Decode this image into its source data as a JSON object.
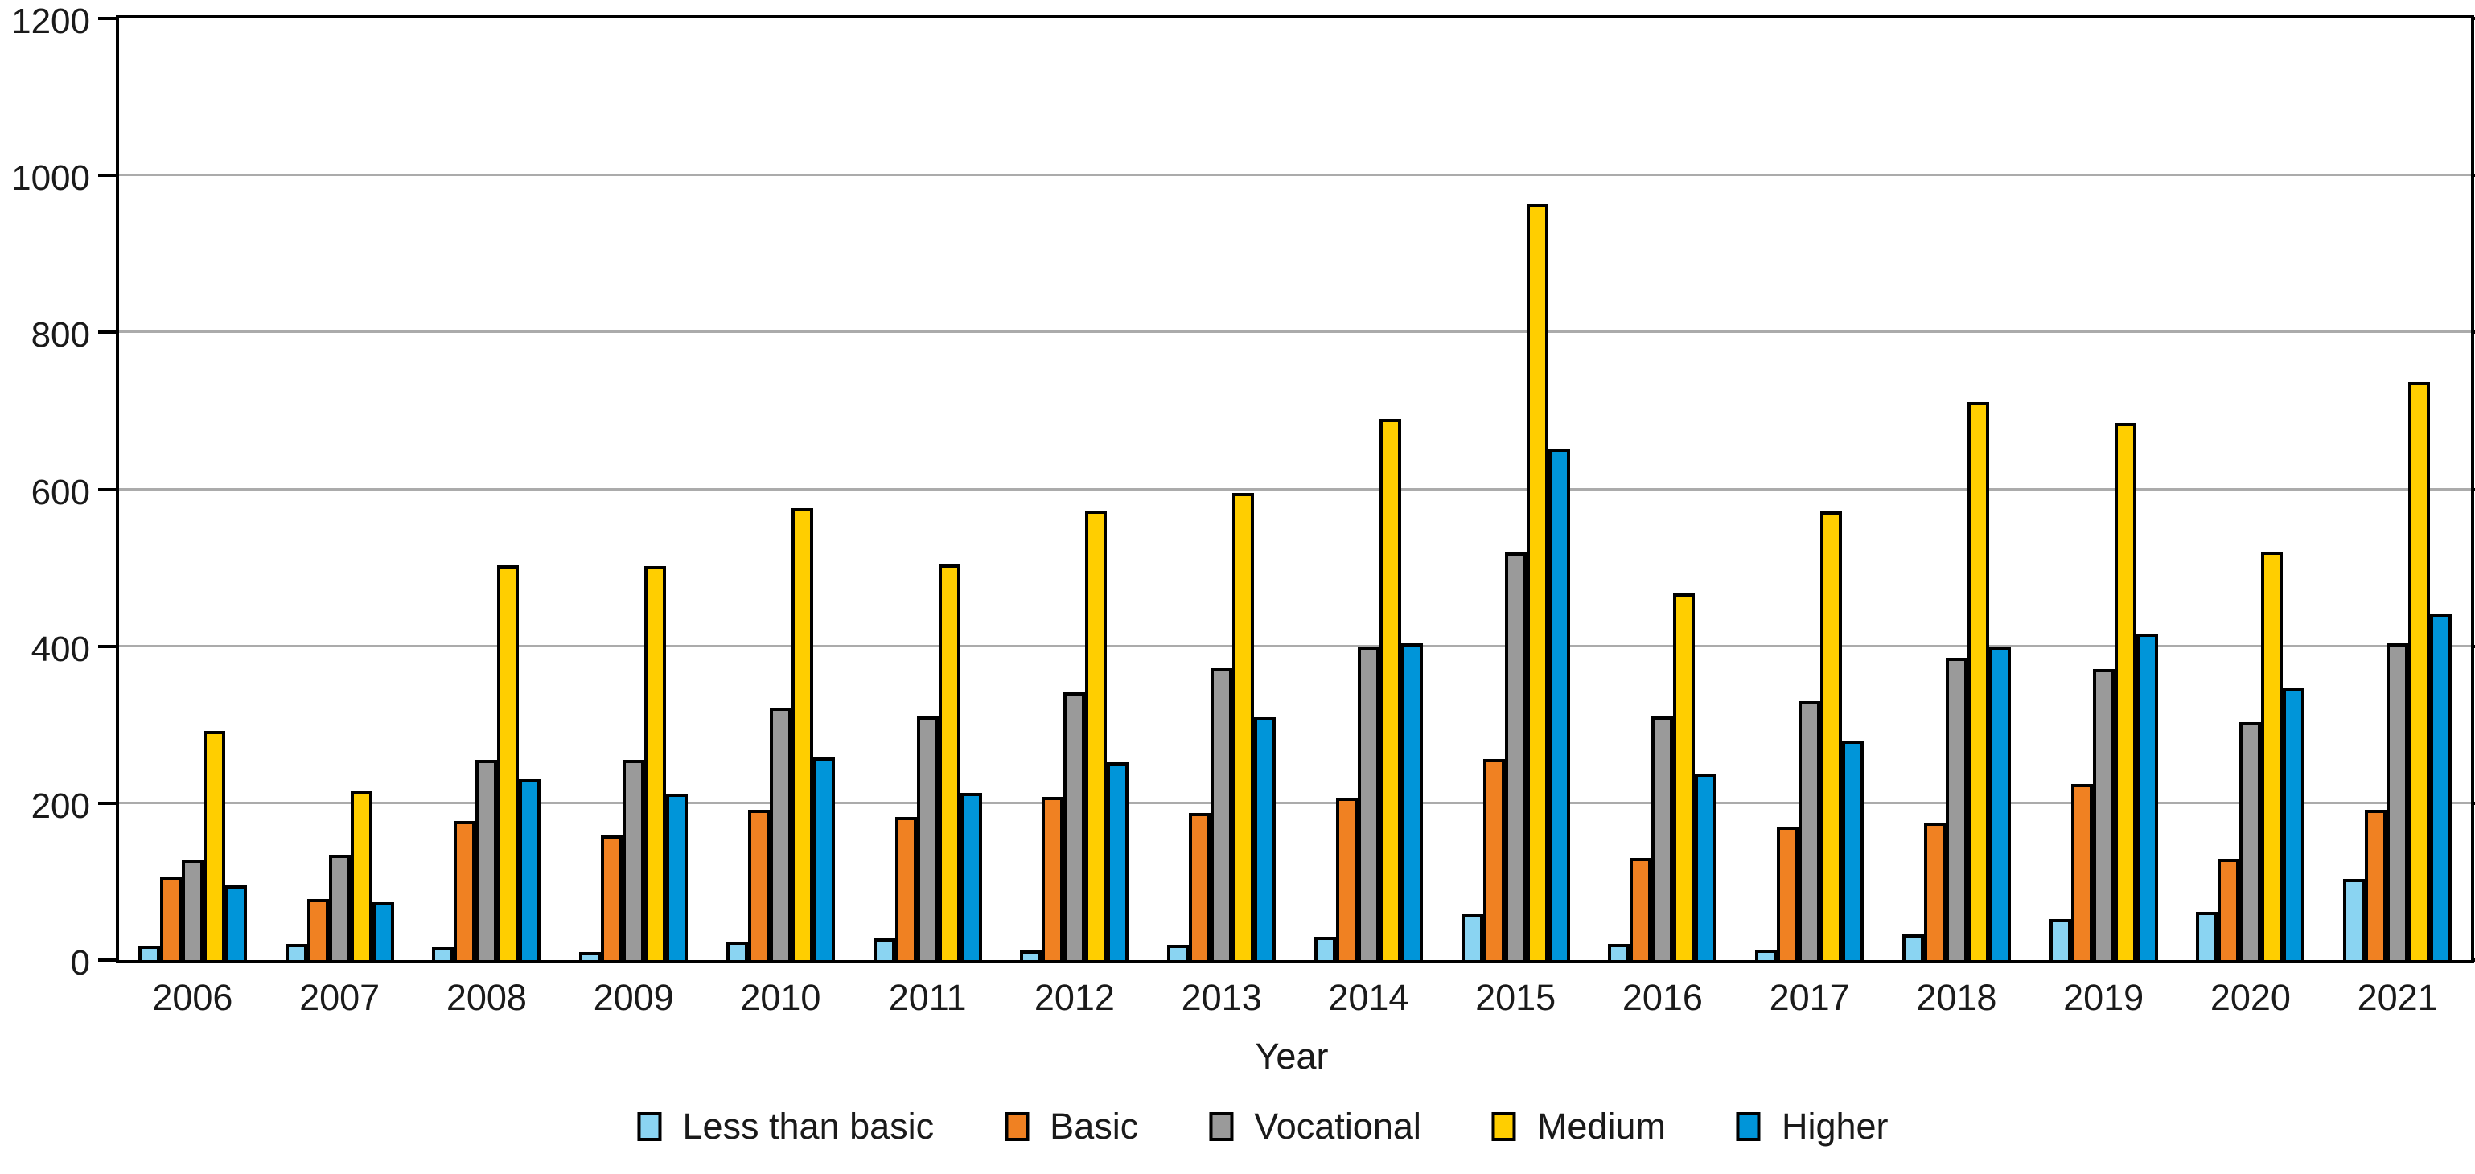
{
  "chart_data": {
    "type": "bar",
    "title": "",
    "xlabel": "Year",
    "ylabel": "",
    "ylim": [
      0,
      1200
    ],
    "ytick_step": 200,
    "ytick_labels": [
      "0",
      "200",
      "400",
      "600",
      "800",
      "1000",
      "1200"
    ],
    "grid": true,
    "legend_position": "bottom",
    "categories": [
      "2006",
      "2007",
      "2008",
      "2009",
      "2010",
      "2011",
      "2012",
      "2013",
      "2014",
      "2015",
      "2016",
      "2017",
      "2018",
      "2019",
      "2020",
      "2021"
    ],
    "series": [
      {
        "name": "Less than basic",
        "color": "#8AD4F2",
        "values": [
          18,
          20,
          16,
          10,
          24,
          28,
          12,
          19,
          30,
          58,
          21,
          13,
          33,
          52,
          62,
          104
        ]
      },
      {
        "name": "Basic",
        "color": "#F08122",
        "values": [
          106,
          78,
          177,
          159,
          192,
          182,
          208,
          188,
          207,
          256,
          130,
          170,
          175,
          224,
          129,
          192
        ]
      },
      {
        "name": "Vocational",
        "color": "#9A9A9A",
        "values": [
          128,
          134,
          255,
          255,
          322,
          311,
          341,
          372,
          400,
          520,
          311,
          330,
          385,
          371,
          303,
          404
        ]
      },
      {
        "name": "Medium",
        "color": "#FFCE00",
        "values": [
          292,
          215,
          503,
          502,
          576,
          504,
          573,
          595,
          690,
          963,
          467,
          572,
          711,
          685,
          521,
          737
        ]
      },
      {
        "name": "Higher",
        "color": "#0095D9",
        "values": [
          95,
          74,
          231,
          212,
          258,
          213,
          252,
          310,
          404,
          652,
          238,
          280,
          400,
          416,
          347,
          442
        ]
      }
    ]
  },
  "styles": {
    "background": "#FFFFFF",
    "grid_color": "#ABABAB",
    "axis_color": "#000000",
    "bar_border_color": "#000000",
    "text_color": "#1A1A1A"
  },
  "legend": {
    "items": [
      "Less than basic",
      "Basic",
      "Vocational",
      "Medium",
      "Higher"
    ]
  }
}
